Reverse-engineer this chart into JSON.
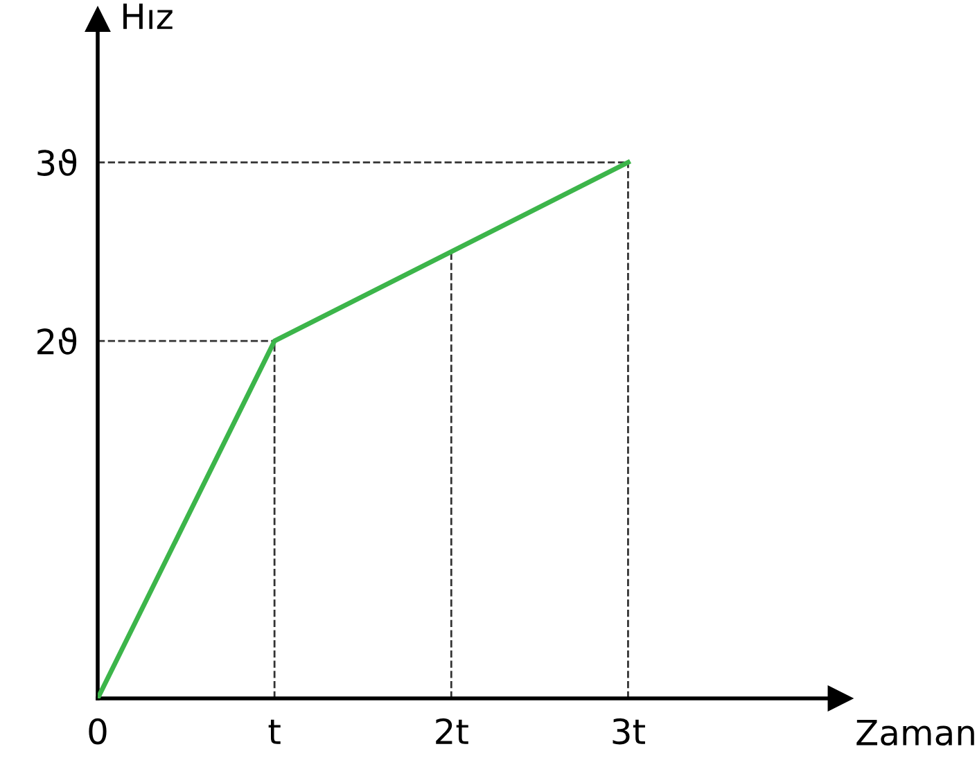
{
  "chart_data": {
    "type": "line",
    "xlabel": "Zaman",
    "ylabel": "Hız",
    "x": [
      0,
      1,
      3
    ],
    "series": [
      {
        "color": "#3cb54a",
        "values": [
          0,
          2,
          3
        ]
      }
    ],
    "xlim": [
      0,
      4.2
    ],
    "ylim": [
      0,
      3.8
    ],
    "xticks": [
      0,
      {
        "value": 1,
        "label": "t"
      },
      {
        "value": 2,
        "label": "2t"
      },
      {
        "value": 3,
        "label": "3t"
      }
    ],
    "yticks": [
      {
        "value": 2,
        "label": "2ϑ"
      },
      {
        "value": 3,
        "label": "3ϑ"
      }
    ],
    "ref_lines": [
      {
        "axis": "x",
        "value": 1,
        "line_style": "dashed",
        "color": "#333333"
      },
      {
        "axis": "x",
        "value": 2,
        "line_style": "dashed",
        "color": "#333333"
      },
      {
        "axis": "x",
        "value": 3,
        "line_style": "dashed",
        "color": "#333333"
      },
      {
        "axis": "y",
        "value": 2,
        "line_style": "dashed",
        "color": "#333333"
      },
      {
        "axis": "y",
        "value": 3,
        "line_style": "dashed",
        "color": "#333333"
      }
    ],
    "grid": false,
    "legend": false,
    "marker": "none",
    "line_style": "solid"
  }
}
